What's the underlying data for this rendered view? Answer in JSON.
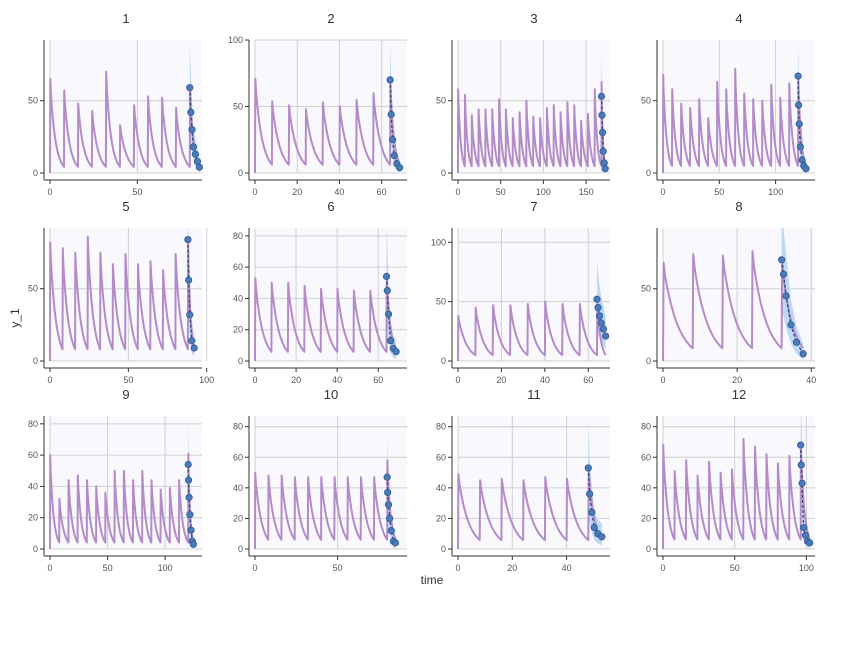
{
  "chart_data": {
    "type": "line",
    "xlabel": "time",
    "ylabel": "y_1",
    "grid": true,
    "colors": {
      "prediction": "#b38bc9",
      "observation": "#4a7ab8",
      "band": "#a8cdf2",
      "fit": "#2f4a6d",
      "panel_bg": "#f9f9fd",
      "grid": "#d0d0d0"
    },
    "panels": [
      {
        "title": "1",
        "xlim": [
          0,
          87
        ],
        "ylim": [
          0,
          92
        ],
        "xticks": [
          "0",
          "50"
        ],
        "yticks": [
          "0",
          "50"
        ],
        "xtick_values": [
          0,
          50
        ],
        "ytick_values": [
          0,
          50
        ],
        "dose_times": [
          0,
          8,
          16,
          24,
          32,
          40,
          48,
          56,
          64,
          72,
          80
        ],
        "peaks": [
          65,
          57,
          48,
          43,
          70,
          33,
          47,
          53,
          52,
          45,
          60
        ],
        "obs_x": [
          80,
          80.6,
          81.3,
          82.1,
          83.2,
          84.4,
          85.5
        ],
        "obs_y": [
          59,
          42,
          30,
          18,
          13,
          8,
          4
        ]
      },
      {
        "title": "2",
        "xlim": [
          0,
          72
        ],
        "ylim": [
          0,
          100
        ],
        "xticks": [
          "0",
          "20",
          "40",
          "60"
        ],
        "yticks": [
          "0",
          "50",
          "100"
        ],
        "xtick_values": [
          0,
          20,
          40,
          60
        ],
        "ytick_values": [
          0,
          50,
          100
        ],
        "dose_times": [
          0,
          8,
          16,
          24,
          32,
          40,
          48,
          56,
          64
        ],
        "peaks": [
          71,
          54,
          51,
          48,
          53,
          50,
          55,
          60,
          70
        ],
        "obs_x": [
          64,
          64.5,
          65.2,
          66,
          67.2,
          68.5
        ],
        "obs_y": [
          70,
          44,
          25,
          13,
          7,
          4
        ]
      },
      {
        "title": "3",
        "xlim": [
          0,
          178
        ],
        "ylim": [
          0,
          92
        ],
        "xticks": [
          "0",
          "50",
          "100",
          "150"
        ],
        "yticks": [
          "0",
          "50"
        ],
        "xtick_values": [
          0,
          50,
          100,
          150
        ],
        "ytick_values": [
          0,
          50
        ],
        "dose_times": [
          0,
          8,
          16,
          24,
          32,
          40,
          48,
          56,
          64,
          72,
          80,
          88,
          96,
          104,
          112,
          120,
          128,
          136,
          144,
          152,
          160,
          168
        ],
        "peaks": [
          58,
          54,
          40,
          44,
          44,
          44,
          51,
          44,
          38,
          42,
          50,
          39,
          38,
          45,
          47,
          42,
          49,
          47,
          36,
          41,
          58,
          63
        ],
        "obs_x": [
          168,
          168.6,
          169.3,
          170,
          171.2,
          172.4
        ],
        "obs_y": [
          53,
          40,
          28,
          15,
          7,
          3
        ]
      },
      {
        "title": "4",
        "xlim": [
          0,
          135
        ],
        "ylim": [
          0,
          92
        ],
        "xticks": [
          "0",
          "50",
          "100"
        ],
        "yticks": [
          "0",
          "50"
        ],
        "xtick_values": [
          0,
          50,
          100
        ],
        "ytick_values": [
          0,
          50
        ],
        "dose_times": [
          0,
          8,
          16,
          24,
          32,
          40,
          48,
          56,
          64,
          72,
          80,
          88,
          96,
          104,
          112,
          120
        ],
        "peaks": [
          68,
          58,
          48,
          45,
          51,
          38,
          63,
          58,
          72,
          55,
          51,
          50,
          61,
          52,
          62,
          68
        ],
        "obs_x": [
          120,
          120.4,
          121,
          122,
          123.5,
          125,
          127
        ],
        "obs_y": [
          67,
          47,
          34,
          18,
          9,
          5,
          3
        ]
      },
      {
        "title": "5",
        "xlim": [
          0,
          97
        ],
        "ylim": [
          0,
          92
        ],
        "xticks": [
          "0",
          "50",
          "100"
        ],
        "yticks": [
          "0",
          "50"
        ],
        "xtick_values": [
          0,
          50,
          100
        ],
        "ytick_values": [
          0,
          50
        ],
        "dose_times": [
          0,
          8,
          16,
          24,
          32,
          40,
          48,
          56,
          64,
          72,
          80,
          88
        ],
        "peaks": [
          82,
          78,
          75,
          86,
          75,
          67,
          74,
          67,
          69,
          63,
          74,
          85
        ],
        "obs_x": [
          88,
          88.5,
          89.2,
          90.5,
          92
        ],
        "obs_y": [
          84,
          56,
          32,
          14,
          9
        ]
      },
      {
        "title": "6",
        "xlim": [
          0,
          74
        ],
        "ylim": [
          0,
          85
        ],
        "xticks": [
          "0",
          "20",
          "40",
          "60"
        ],
        "yticks": [
          "0",
          "20",
          "40",
          "60",
          "80"
        ],
        "xtick_values": [
          0,
          20,
          40,
          60
        ],
        "ytick_values": [
          0,
          20,
          40,
          60,
          80
        ],
        "dose_times": [
          0,
          8,
          16,
          24,
          32,
          40,
          48,
          56,
          64
        ],
        "peaks": [
          53,
          50,
          50,
          48,
          46,
          46,
          45,
          45,
          56
        ],
        "obs_x": [
          64,
          64.4,
          65,
          66,
          67.3,
          68.7
        ],
        "obs_y": [
          54,
          45,
          30,
          13,
          8,
          6
        ]
      },
      {
        "title": "7",
        "xlim": [
          0,
          70
        ],
        "ylim": [
          0,
          112
        ],
        "xticks": [
          "0",
          "20",
          "40",
          "60"
        ],
        "yticks": [
          "0",
          "50",
          "100"
        ],
        "xtick_values": [
          0,
          20,
          40,
          60
        ],
        "ytick_values": [
          0,
          50,
          100
        ],
        "dose_times": [
          0,
          8,
          16,
          24,
          32,
          40,
          48,
          56,
          64
        ],
        "peaks": [
          38,
          45,
          47,
          47,
          48,
          50,
          48,
          48,
          52
        ],
        "obs_x": [
          64,
          64.5,
          65.2,
          66,
          67,
          68
        ],
        "obs_y": [
          52,
          45,
          38,
          32,
          27,
          21
        ]
      },
      {
        "title": "8",
        "xlim": [
          0,
          41
        ],
        "ylim": [
          0,
          92
        ],
        "xticks": [
          "0",
          "20",
          "40"
        ],
        "yticks": [
          "0",
          "50"
        ],
        "xtick_values": [
          0,
          20,
          40
        ],
        "ytick_values": [
          0,
          50
        ],
        "dose_times": [
          0,
          8,
          16,
          24,
          32
        ],
        "peaks": [
          68,
          74,
          73,
          76,
          70
        ],
        "obs_x": [
          32,
          32.5,
          33.2,
          34.5,
          36,
          37.8
        ],
        "obs_y": [
          70,
          60,
          45,
          25,
          13,
          5
        ]
      },
      {
        "title": "9",
        "xlim": [
          0,
          132
        ],
        "ylim": [
          0,
          85
        ],
        "xticks": [
          "0",
          "50",
          "100"
        ],
        "yticks": [
          "0",
          "20",
          "40",
          "60",
          "80"
        ],
        "xtick_values": [
          0,
          50,
          100
        ],
        "ytick_values": [
          0,
          20,
          40,
          60,
          80
        ],
        "dose_times": [
          0,
          8,
          16,
          24,
          32,
          40,
          48,
          56,
          64,
          72,
          80,
          88,
          96,
          104,
          112,
          120
        ],
        "peaks": [
          60,
          32,
          44,
          47,
          44,
          40,
          36,
          50,
          50,
          44,
          50,
          44,
          38,
          39,
          44,
          61
        ],
        "obs_x": [
          120,
          120.3,
          120.8,
          121.5,
          122.5,
          123.5,
          124.5
        ],
        "obs_y": [
          54,
          44,
          33,
          22,
          12,
          5,
          3
        ]
      },
      {
        "title": "10",
        "xlim": [
          0,
          92
        ],
        "ylim": [
          0,
          87
        ],
        "xticks": [
          "0",
          "50"
        ],
        "yticks": [
          "0",
          "20",
          "40",
          "60",
          "80"
        ],
        "xtick_values": [
          0,
          50
        ],
        "ytick_values": [
          0,
          20,
          40,
          60,
          80
        ],
        "dose_times": [
          0,
          8,
          16,
          24,
          32,
          40,
          48,
          56,
          64,
          72,
          80
        ],
        "peaks": [
          50,
          48,
          48,
          47,
          47,
          47,
          47,
          47,
          47,
          47,
          58
        ],
        "obs_x": [
          80,
          80.3,
          80.8,
          81.5,
          82.5,
          83.8,
          85
        ],
        "obs_y": [
          47,
          37,
          29,
          20,
          12,
          5,
          4
        ]
      },
      {
        "title": "11",
        "xlim": [
          0,
          56
        ],
        "ylim": [
          0,
          87
        ],
        "xticks": [
          "0",
          "20",
          "40"
        ],
        "yticks": [
          "0",
          "20",
          "40",
          "60",
          "80"
        ],
        "xtick_values": [
          0,
          20,
          40
        ],
        "ytick_values": [
          0,
          20,
          40,
          60,
          80
        ],
        "dose_times": [
          0,
          8,
          16,
          24,
          32,
          40,
          48
        ],
        "peaks": [
          49,
          45,
          46,
          45,
          47,
          46,
          53
        ],
        "obs_x": [
          48,
          48.5,
          49.3,
          50.2,
          51.5,
          53
        ],
        "obs_y": [
          53,
          36,
          24,
          14,
          10,
          8
        ]
      },
      {
        "title": "12",
        "xlim": [
          0,
          106
        ],
        "ylim": [
          0,
          87
        ],
        "xticks": [
          "0",
          "50",
          "100"
        ],
        "yticks": [
          "0",
          "20",
          "40",
          "60",
          "80"
        ],
        "xtick_values": [
          0,
          50,
          100
        ],
        "ytick_values": [
          0,
          20,
          40,
          60,
          80
        ],
        "dose_times": [
          0,
          8,
          16,
          24,
          32,
          40,
          48,
          56,
          64,
          72,
          80,
          88,
          96
        ],
        "peaks": [
          68,
          51,
          58,
          48,
          57,
          50,
          52,
          72,
          67,
          62,
          56,
          61,
          68
        ],
        "obs_x": [
          96,
          96.4,
          97,
          98,
          99.3,
          100.8,
          102.3
        ],
        "obs_y": [
          68,
          55,
          43,
          14,
          9,
          5,
          4
        ]
      }
    ]
  }
}
